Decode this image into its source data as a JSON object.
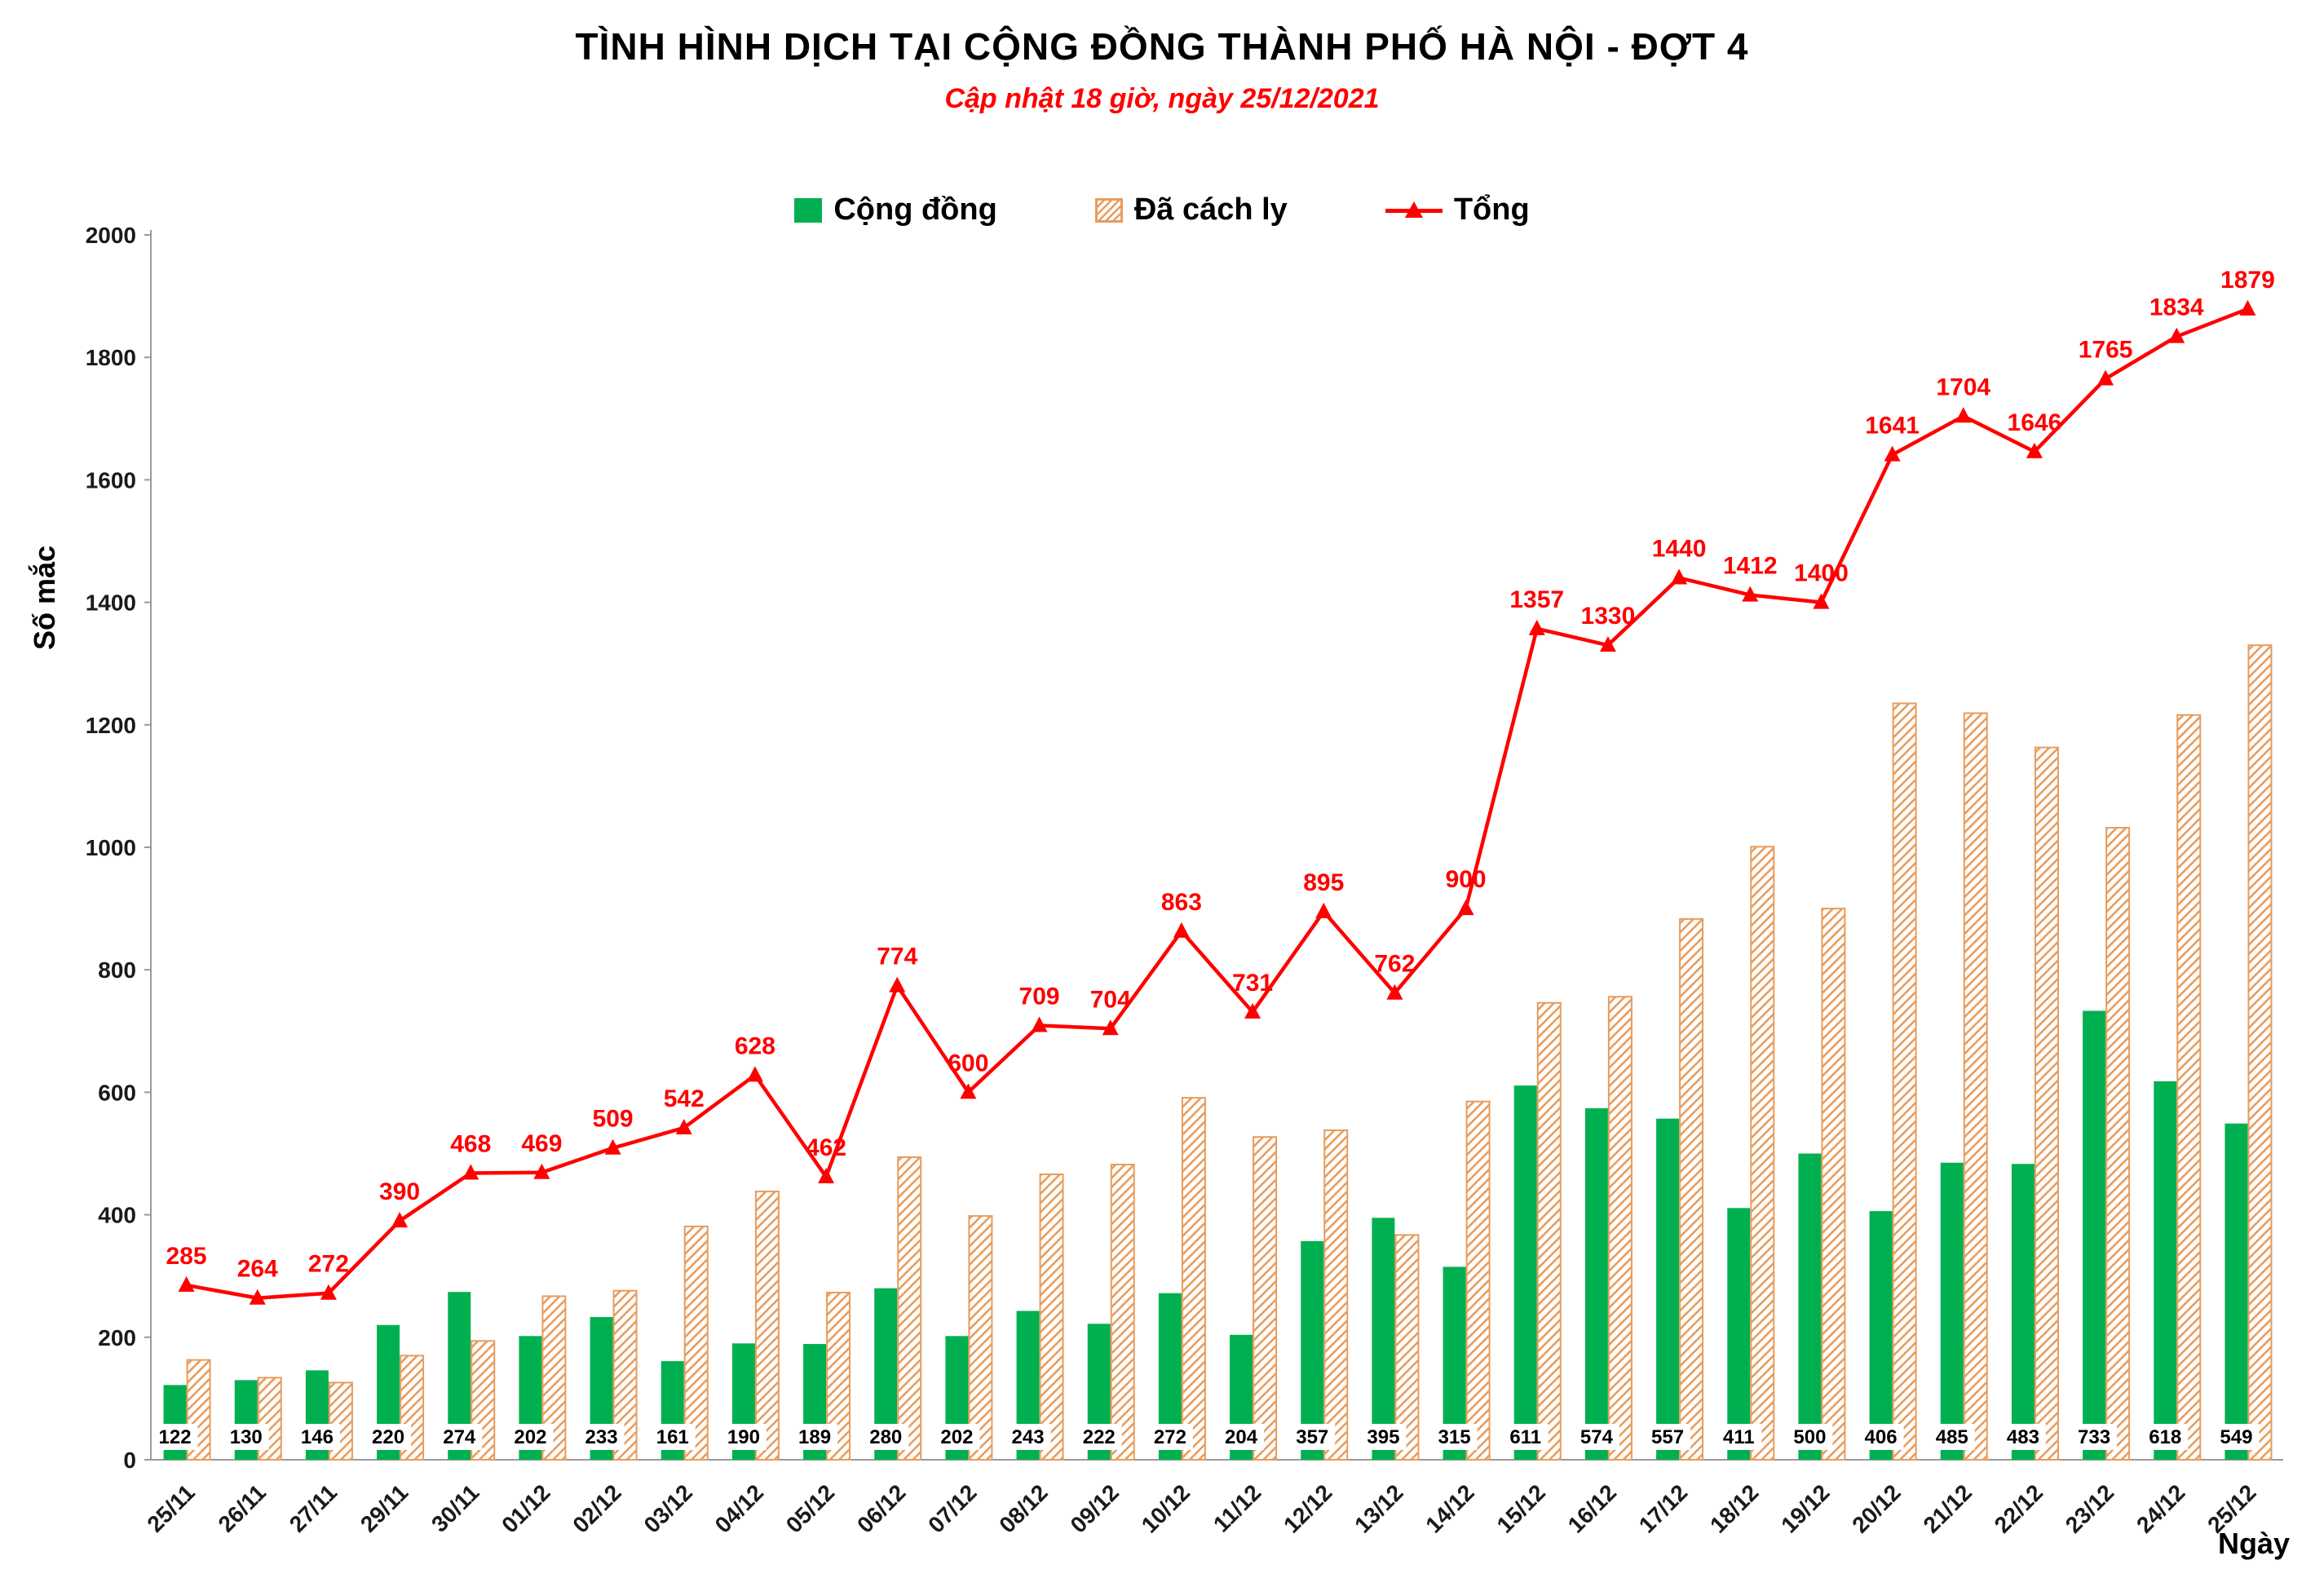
{
  "chart_data": {
    "type": "combo",
    "title": "TÌNH HÌNH DỊCH TẠI CỘNG ĐỒNG THÀNH PHỐ HÀ NỘI - ĐỢT 4",
    "subtitle": "Cập nhật 18 giờ, ngày 25/12/2021",
    "ylabel": "Số mắc",
    "xlabel": "Ngày",
    "ylim": [
      0,
      2000
    ],
    "ytick_step": 200,
    "grid": false,
    "legend_position": "top",
    "colors": {
      "title": "#000000",
      "subtitle": "#FF0000",
      "axis": "#9B9B9B",
      "text": "#1A1A1A"
    },
    "categories": [
      "25/11",
      "26/11",
      "27/11",
      "29/11",
      "30/11",
      "01/12",
      "02/12",
      "03/12",
      "04/12",
      "05/12",
      "06/12",
      "07/12",
      "08/12",
      "09/12",
      "10/12",
      "11/12",
      "12/12",
      "13/12",
      "14/12",
      "15/12",
      "16/12",
      "17/12",
      "18/12",
      "19/12",
      "20/12",
      "21/12",
      "22/12",
      "23/12",
      "24/12",
      "25/12"
    ],
    "series": [
      {
        "name": "Cộng đồng",
        "type": "bar",
        "pattern": "solid",
        "color": "#00B050",
        "data_labels": "base",
        "values": [
          122,
          130,
          146,
          220,
          274,
          202,
          233,
          161,
          190,
          189,
          280,
          202,
          243,
          222,
          272,
          204,
          357,
          395,
          315,
          611,
          574,
          557,
          411,
          500,
          406,
          485,
          483,
          733,
          618,
          549
        ]
      },
      {
        "name": "Đã cách ly",
        "type": "bar",
        "pattern": "diagonal-hatch",
        "color": "#E89C5D",
        "data_labels": "none",
        "values": [
          163,
          134,
          126,
          170,
          194,
          267,
          276,
          381,
          438,
          273,
          494,
          398,
          466,
          482,
          591,
          527,
          538,
          367,
          585,
          746,
          756,
          883,
          1001,
          900,
          1235,
          1219,
          1163,
          1032,
          1216,
          1330
        ]
      },
      {
        "name": "Tổng",
        "type": "line",
        "marker": "triangle",
        "color": "#FF0000",
        "data_labels": "above",
        "values": [
          285,
          264,
          272,
          390,
          468,
          469,
          509,
          542,
          628,
          462,
          774,
          600,
          709,
          704,
          863,
          731,
          895,
          762,
          900,
          1357,
          1330,
          1440,
          1412,
          1400,
          1641,
          1704,
          1646,
          1765,
          1834,
          1879
        ]
      }
    ]
  }
}
